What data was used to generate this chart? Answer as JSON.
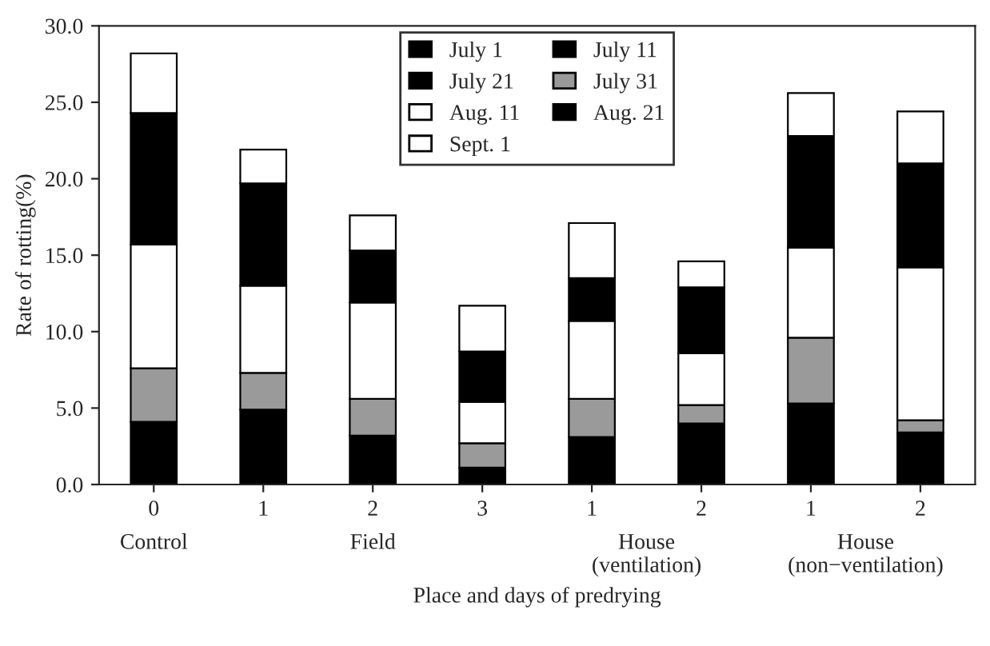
{
  "chart_data": {
    "type": "bar",
    "stacked": true,
    "xlabel": "Place and days of predrying",
    "ylabel": "Rate of rotting(%)",
    "categories": [
      "0",
      "1",
      "2",
      "3",
      "1",
      "2",
      "1",
      "2"
    ],
    "annotations": [
      "Control",
      "Field",
      "House\n(ventilation)",
      "House\n(non−ventilation)"
    ],
    "series": [
      {
        "name": "July 1",
        "color": "#000000",
        "values": [
          4.1,
          4.9,
          3.2,
          1.1,
          3.1,
          4.0,
          5.3,
          3.4
        ]
      },
      {
        "name": "July 11",
        "color": "#000000",
        "values": [
          0,
          0,
          0,
          0,
          0,
          0,
          0,
          0
        ]
      },
      {
        "name": "July 21",
        "color": "#000000",
        "values": [
          0,
          0,
          0,
          0,
          0,
          0,
          0,
          0
        ]
      },
      {
        "name": "July 31",
        "color": "#9a9a9a",
        "values": [
          3.5,
          2.4,
          2.4,
          1.6,
          2.5,
          1.2,
          4.3,
          0.8
        ]
      },
      {
        "name": "Aug. 11",
        "color": "#ffffff",
        "values": [
          8.1,
          5.7,
          6.3,
          2.7,
          5.1,
          3.4,
          5.9,
          10.0
        ]
      },
      {
        "name": "Aug. 21",
        "color": "#000000",
        "values": [
          8.6,
          6.7,
          3.4,
          3.3,
          2.8,
          4.3,
          7.3,
          6.8
        ]
      },
      {
        "name": "Sept. 1",
        "color": "#ffffff",
        "values": [
          3.9,
          2.2,
          2.3,
          3.0,
          3.6,
          1.7,
          2.8,
          3.4
        ]
      }
    ],
    "ylim": [
      0,
      30
    ],
    "yticks": [
      {
        "value": 0,
        "label": "0.0"
      },
      {
        "value": 5,
        "label": "5.0"
      },
      {
        "value": 10,
        "label": "10.0"
      },
      {
        "value": 15,
        "label": "15.0"
      },
      {
        "value": 20,
        "label": "20.0"
      },
      {
        "value": 25,
        "label": "25.0"
      },
      {
        "value": 30,
        "label": "30.0"
      }
    ],
    "legend": "top",
    "grid": false
  }
}
